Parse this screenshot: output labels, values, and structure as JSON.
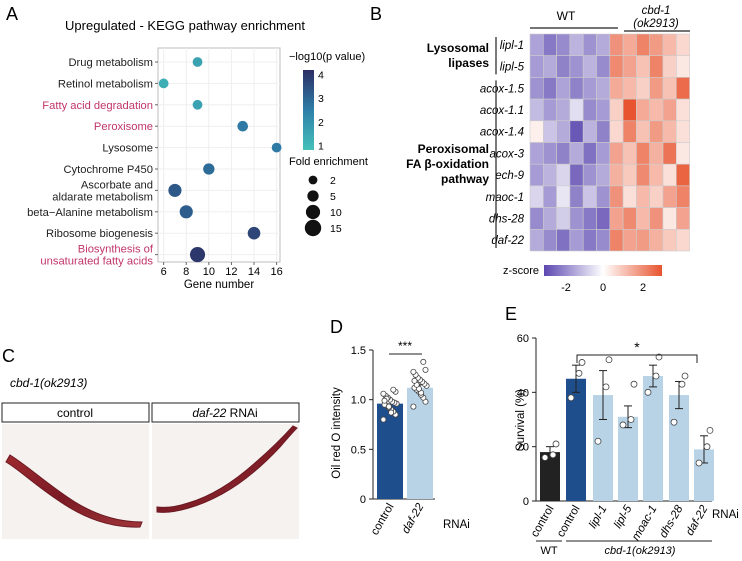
{
  "panels": {
    "A": "A",
    "B": "B",
    "C": "C",
    "D": "D",
    "E": "E"
  },
  "colors": {
    "pink": "#c0356a",
    "dark_blue": "#1f4e8c",
    "light_blue": "#b9d3e6",
    "black": "#222222",
    "heat_low": "#5b47b0",
    "heat_mid": "#ffffff",
    "heat_high": "#e8542f"
  },
  "chart_data": [
    {
      "panel": "A",
      "type": "scatter",
      "title": "Upregulated - KEGG pathway enrichment",
      "xlabel": "Gene number",
      "xlim": [
        5.5,
        16.3
      ],
      "xticks": [
        "6",
        "8",
        "10",
        "12",
        "14",
        "16"
      ],
      "categories": [
        "Drug metabolism",
        "Retinol metabolism",
        "Fatty acid degradation",
        "Peroxisome",
        "Lysosome",
        "Cytochrome P450",
        "Ascorbate and aldarate metabolism",
        "beta−Alanine metabolism",
        "Ribosome biogenesis",
        "Biosynthesis of unsaturated fatty acids"
      ],
      "category_lines": [
        [
          "Drug metabolism"
        ],
        [
          "Retinol metabolism"
        ],
        [
          "Fatty acid degradation"
        ],
        [
          "Peroxisome"
        ],
        [
          "Lysosome"
        ],
        [
          "Cytochrome P450"
        ],
        [
          "Ascorbate and",
          "aldarate metabolism"
        ],
        [
          "beta−Alanine metabolism"
        ],
        [
          "Ribosome biogenesis"
        ],
        [
          "Biosynthesis of",
          "unsaturated fatty acids"
        ]
      ],
      "highlighted": [
        false,
        false,
        true,
        true,
        false,
        false,
        false,
        false,
        false,
        true
      ],
      "gene_number": [
        9,
        6,
        9,
        13,
        16,
        10,
        7,
        8,
        14,
        9
      ],
      "neg_log10_p": [
        1.6,
        1.3,
        1.6,
        2.6,
        2.6,
        2.9,
        3.3,
        3.2,
        3.7,
        4.0
      ],
      "fold_enrichment": [
        3,
        3,
        3,
        4,
        3,
        5,
        8,
        8,
        7,
        12
      ],
      "color_legend": {
        "title": "−log10(p value)",
        "ticks": [
          "4",
          "3",
          "2",
          "1"
        ],
        "range": [
          0.8,
          4.2
        ]
      },
      "size_legend": {
        "title": "Fold enrichment",
        "labels": [
          "2",
          "5",
          "10",
          "15"
        ],
        "values": [
          2,
          5,
          10,
          15
        ]
      }
    },
    {
      "panel": "B",
      "type": "heatmap",
      "column_groups": [
        "WT"
      ],
      "column_group2_lines": [
        "cbd-1",
        "(ok2913)"
      ],
      "rows": [
        "lipl-1",
        "lipl-5",
        "acox-1.5",
        "acox-1.1",
        "acox-1.4",
        "acox-3",
        "ech-9",
        "maoc-1",
        "dhs-28",
        "daf-22"
      ],
      "row_groups": [
        {
          "lines": [
            "Lysosomal",
            "lipases"
          ],
          "rows": [
            0,
            1
          ]
        },
        {
          "lines": [
            "Peroxisomal",
            "FA β-oxidation",
            "pathway"
          ],
          "rows": [
            2,
            9
          ]
        }
      ],
      "zscore": [
        [
          -1.1,
          -1.6,
          -1.4,
          -0.9,
          -1.3,
          -1.0,
          1.4,
          1.1,
          1.6,
          1.3,
          0.9,
          0.5
        ],
        [
          -1.2,
          -1.0,
          -1.5,
          -1.3,
          -0.9,
          -1.4,
          1.5,
          1.2,
          0.8,
          1.6,
          0.6,
          0.3
        ],
        [
          -1.3,
          -1.6,
          -1.1,
          -1.5,
          -1.2,
          -1.0,
          1.1,
          0.9,
          0.6,
          1.3,
          0.8,
          1.9
        ],
        [
          -0.8,
          -1.2,
          -1.0,
          -0.4,
          -1.4,
          -1.2,
          0.6,
          2.2,
          1.1,
          0.9,
          1.2,
          0.4
        ],
        [
          0.2,
          -0.7,
          -1.0,
          -2.0,
          -0.9,
          -1.5,
          0.5,
          1.6,
          0.8,
          1.3,
          0.9,
          0.4
        ],
        [
          -1.1,
          -1.3,
          -1.5,
          -1.0,
          -1.7,
          -1.2,
          1.2,
          0.8,
          1.6,
          1.0,
          1.8,
          0.3
        ],
        [
          -1.2,
          -0.9,
          -0.5,
          -1.8,
          -1.3,
          -1.0,
          1.0,
          0.7,
          1.5,
          0.9,
          0.4,
          2.0
        ],
        [
          -0.5,
          -1.2,
          -0.3,
          -1.5,
          -0.7,
          -1.3,
          1.4,
          0.4,
          0.9,
          0.6,
          1.2,
          1.6
        ],
        [
          -1.4,
          -1.0,
          -0.6,
          -1.3,
          -1.6,
          -1.8,
          1.2,
          1.5,
          0.9,
          1.4,
          0.3,
          1.2
        ],
        [
          -1.0,
          -1.4,
          -1.7,
          -1.2,
          -1.6,
          -1.4,
          1.6,
          1.2,
          1.3,
          1.0,
          0.7,
          0.5
        ]
      ],
      "colorbar": {
        "label": "z-score",
        "ticks": [
          "-2",
          "0",
          "2"
        ]
      }
    },
    {
      "panel": "D",
      "type": "bar",
      "ylabel": "Oil red O intensity",
      "ylim": [
        0,
        1.5
      ],
      "yticks": [
        "0",
        "0.5",
        "1.0",
        "1.5"
      ],
      "categories": [
        "control",
        "daf-22"
      ],
      "category_italic": [
        false,
        true
      ],
      "values": [
        0.96,
        1.12
      ],
      "sem": [
        0.03,
        0.03
      ],
      "points": [
        [
          0.8,
          0.85,
          0.88,
          0.9,
          0.92,
          0.94,
          0.95,
          0.96,
          0.97,
          0.98,
          1.0,
          1.02,
          1.04,
          1.06,
          1.08,
          1.1,
          0.87,
          0.93,
          1.01,
          0.99
        ],
        [
          0.93,
          0.98,
          1.02,
          1.05,
          1.08,
          1.1,
          1.12,
          1.14,
          1.16,
          1.18,
          1.2,
          1.22,
          1.25,
          1.28,
          1.3,
          1.38,
          1.07,
          1.11,
          1.15,
          1.19
        ]
      ],
      "significance": "***",
      "axis_note": "RNAi"
    },
    {
      "panel": "E",
      "type": "bar",
      "ylabel": "Survival (%)",
      "ylim": [
        0,
        60
      ],
      "yticks": [
        "0",
        "20",
        "40",
        "60"
      ],
      "categories": [
        "control",
        "control",
        "lipl-1",
        "lipl-5",
        "moac-1",
        "dhs-28",
        "daf-22"
      ],
      "category_italic": [
        false,
        false,
        true,
        true,
        true,
        true,
        true
      ],
      "values": [
        18,
        45,
        39,
        31,
        46,
        39,
        19
      ],
      "sem": [
        2,
        5,
        9,
        4,
        4,
        5,
        5
      ],
      "points": [
        [
          16,
          17,
          21
        ],
        [
          38,
          47,
          51
        ],
        [
          22,
          42,
          52
        ],
        [
          28,
          30,
          43
        ],
        [
          40,
          46,
          53
        ],
        [
          29,
          43,
          46
        ],
        [
          14,
          20,
          26
        ]
      ],
      "significance": "*",
      "axis_note": "RNAi",
      "group_labels": [
        "WT",
        "cbd-1(ok2913)"
      ]
    }
  ],
  "panel_c": {
    "strain": "cbd-1(ok2913)",
    "images": [
      {
        "label": "control",
        "label_italic": ""
      },
      {
        "label": " RNAi",
        "label_italic": "daf-22"
      }
    ]
  }
}
